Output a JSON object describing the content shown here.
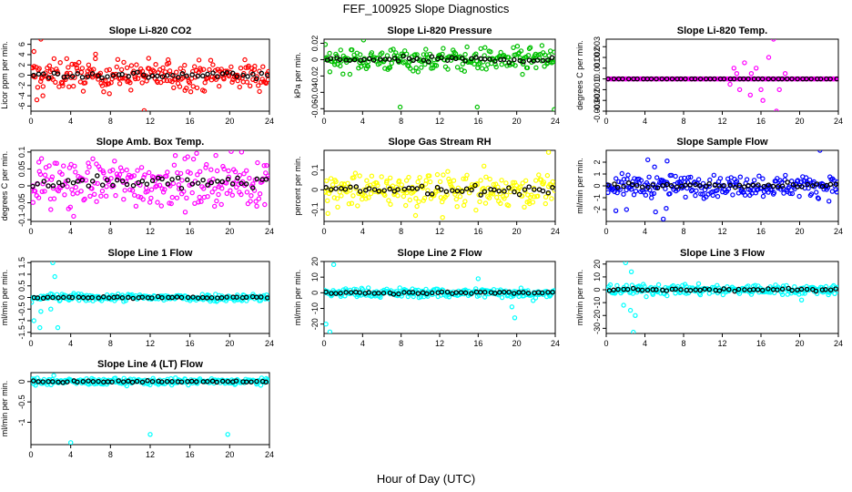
{
  "figure": {
    "title": "FEF_100925  Slope Diagnostics",
    "xlabel": "Hour of Day (UTC)"
  },
  "chart_data": [
    {
      "type": "scatter",
      "title": "Slope Li-820 CO2",
      "ylabel": "Licor ppm per min.",
      "xlim": [
        0,
        24
      ],
      "xticks": [
        0,
        4,
        8,
        12,
        16,
        20,
        24
      ],
      "ylim": [
        -7,
        7
      ],
      "yticks": [
        -6,
        -4,
        -2,
        0,
        2,
        4,
        6
      ],
      "grid": false,
      "colors": {
        "raw": "#ff0000",
        "mean": "#000000"
      },
      "noise": {
        "center": 0,
        "spread": 1.4
      },
      "outliers": [
        [
          0.3,
          4.6
        ],
        [
          0.6,
          -4.8
        ],
        [
          1.0,
          7.0
        ],
        [
          1.2,
          -4.0
        ],
        [
          3.6,
          3.2
        ],
        [
          6.5,
          4.1
        ],
        [
          7.9,
          -3.6
        ],
        [
          11.4,
          -6.9
        ],
        [
          13.8,
          3.0
        ]
      ]
    },
    {
      "type": "scatter",
      "title": "Slope Li-820 Pressure",
      "ylabel": "kPa per min.",
      "xlim": [
        0,
        24
      ],
      "xticks": [
        0,
        4,
        8,
        12,
        16,
        20,
        24
      ],
      "ylim": [
        -0.063,
        0.025
      ],
      "yticks": [
        0.02,
        0,
        -0.02,
        -0.04,
        -0.06
      ],
      "grid": false,
      "colors": {
        "raw": "#00c000",
        "mean": "#000000"
      },
      "noise": {
        "center": 0,
        "spread": 0.007
      },
      "outliers": [
        [
          4.1,
          0.024
        ],
        [
          7.9,
          -0.058
        ],
        [
          15.9,
          -0.058
        ],
        [
          23.9,
          -0.061
        ],
        [
          20.6,
          -0.018
        ]
      ]
    },
    {
      "type": "scatter",
      "title": "Slope Li-820 Temp.",
      "ylabel": "degrees C per min.",
      "xlim": [
        0,
        24
      ],
      "xticks": [
        0,
        4,
        8,
        12,
        16,
        20,
        24
      ],
      "ylim": [
        -0.003,
        0.0037
      ],
      "yticks": [
        0.003,
        0.002,
        0.001,
        0,
        -0.001,
        -0.002,
        -0.003
      ],
      "grid": false,
      "colors": {
        "raw": "#ff00ff",
        "mean": "#000000"
      },
      "noise": {
        "center": 0,
        "spread": 1e-05
      },
      "outliers": [
        [
          13.2,
          0.001
        ],
        [
          13.8,
          -0.001
        ],
        [
          14.3,
          0.0015
        ],
        [
          14.9,
          -0.0015
        ],
        [
          15.5,
          0.001
        ],
        [
          16.2,
          -0.002
        ],
        [
          16.8,
          0.002
        ],
        [
          17.3,
          0.0037
        ],
        [
          17.9,
          -0.001
        ],
        [
          18.5,
          0.0005
        ],
        [
          12.8,
          -0.0005
        ],
        [
          13.5,
          0.0005
        ],
        [
          16.0,
          -0.001
        ],
        [
          15.0,
          0.0005
        ],
        [
          17.6,
          -0.003
        ]
      ]
    },
    {
      "type": "scatter",
      "title": "Slope Amb. Box Temp.",
      "ylabel": "degrees C per min.",
      "xlim": [
        0,
        24
      ],
      "xticks": [
        0,
        4,
        8,
        12,
        16,
        20,
        24
      ],
      "ylim": [
        -0.105,
        0.105
      ],
      "yticks": [
        0.1,
        0.05,
        0,
        -0.05,
        -0.1
      ],
      "grid": false,
      "colors": {
        "raw": "#ff00ff",
        "mean": "#000000"
      },
      "noise": {
        "center": 0.01,
        "spread": 0.035
      },
      "outliers": [
        [
          4.3,
          -0.09
        ],
        [
          0.8,
          0.07
        ],
        [
          21.2,
          0.1
        ],
        [
          18.6,
          0.09
        ],
        [
          2.0,
          -0.07
        ]
      ]
    },
    {
      "type": "scatter",
      "title": "Slope Gas Stream RH",
      "ylabel": "percent per min.",
      "xlim": [
        0,
        24
      ],
      "xticks": [
        0,
        4,
        8,
        12,
        16,
        20,
        24
      ],
      "ylim": [
        -0.16,
        0.2
      ],
      "yticks": [
        0.1,
        0,
        -0.1
      ],
      "grid": false,
      "colors": {
        "raw": "#ffff00",
        "mean": "#000000"
      },
      "noise": {
        "center": 0,
        "spread": 0.04
      },
      "outliers": [
        [
          23.3,
          0.19
        ],
        [
          0.4,
          -0.12
        ],
        [
          9.5,
          -0.13
        ],
        [
          16.6,
          0.12
        ],
        [
          12.3,
          -0.14
        ]
      ]
    },
    {
      "type": "scatter",
      "title": "Slope Sample Flow",
      "ylabel": "ml/min per min.",
      "xlim": [
        0,
        24
      ],
      "xticks": [
        0,
        4,
        8,
        12,
        16,
        20,
        24
      ],
      "ylim": [
        -3,
        3
      ],
      "yticks": [
        2,
        1,
        0,
        -1,
        -2
      ],
      "grid": false,
      "colors": {
        "raw": "#0000ff",
        "mean": "#000000"
      },
      "noise": {
        "center": 0,
        "spread": 0.45
      },
      "outliers": [
        [
          5.0,
          1.6
        ],
        [
          5.1,
          -2.2
        ],
        [
          6.2,
          -1.9
        ],
        [
          4.3,
          2.2
        ],
        [
          6.3,
          2.1
        ],
        [
          2.1,
          -2.0
        ],
        [
          22.1,
          3.0
        ],
        [
          1.0,
          -2.1
        ],
        [
          5.9,
          -2.8
        ]
      ]
    },
    {
      "type": "scatter",
      "title": "Slope Line 1 Flow",
      "ylabel": "ml/min per min.",
      "xlim": [
        0,
        24
      ],
      "xticks": [
        0,
        4,
        8,
        12,
        16,
        20,
        24
      ],
      "ylim": [
        -1.55,
        1.55
      ],
      "yticks": [
        1.5,
        1,
        0.5,
        0,
        -0.5,
        -1,
        -1.5
      ],
      "grid": false,
      "colors": {
        "raw": "#00ffff",
        "mean": "#000000"
      },
      "noise": {
        "center": 0,
        "spread": 0.08
      },
      "outliers": [
        [
          2.2,
          1.5
        ],
        [
          0.3,
          -1.0
        ],
        [
          1.0,
          -0.6
        ],
        [
          2.7,
          -1.3
        ],
        [
          0.9,
          -1.3
        ],
        [
          2.4,
          0.9
        ],
        [
          2.0,
          -0.5
        ]
      ]
    },
    {
      "type": "scatter",
      "title": "Slope Line 2 Flow",
      "ylabel": "ml/min per min.",
      "xlim": [
        0,
        24
      ],
      "xticks": [
        0,
        4,
        8,
        12,
        16,
        20,
        24
      ],
      "ylim": [
        -26,
        20
      ],
      "yticks": [
        20,
        10,
        0,
        -10,
        -20
      ],
      "grid": false,
      "colors": {
        "raw": "#00ffff",
        "mean": "#000000"
      },
      "noise": {
        "center": 0,
        "spread": 1.5
      },
      "outliers": [
        [
          1.0,
          18
        ],
        [
          0.2,
          -20
        ],
        [
          0.6,
          -25
        ],
        [
          16.0,
          9
        ],
        [
          19.8,
          -16
        ],
        [
          21.7,
          -5
        ],
        [
          19.5,
          -9
        ]
      ]
    },
    {
      "type": "scatter",
      "title": "Slope Line 3 Flow",
      "ylabel": "ml/min per min.",
      "xlim": [
        0,
        24
      ],
      "xticks": [
        0,
        4,
        8,
        12,
        16,
        20,
        24
      ],
      "ylim": [
        -34,
        22
      ],
      "yticks": [
        20,
        10,
        0,
        -10,
        -20,
        -30
      ],
      "grid": false,
      "colors": {
        "raw": "#00ffff",
        "mean": "#000000"
      },
      "noise": {
        "center": 0,
        "spread": 2.0
      },
      "outliers": [
        [
          2.0,
          21
        ],
        [
          2.8,
          -33
        ],
        [
          1.8,
          -12
        ],
        [
          2.5,
          -16
        ],
        [
          2.6,
          14
        ],
        [
          3.0,
          -20
        ],
        [
          20.2,
          -8
        ]
      ]
    },
    {
      "type": "scatter",
      "title": "Slope Line 4 (LT) Flow",
      "ylabel": "ml/min per min.",
      "xlim": [
        0,
        24
      ],
      "xticks": [
        0,
        4,
        8,
        12,
        16,
        20,
        24
      ],
      "ylim": [
        -1.55,
        0.22
      ],
      "yticks": [
        0,
        -0.5,
        -1
      ],
      "grid": false,
      "colors": {
        "raw": "#00ffff",
        "mean": "#000000"
      },
      "noise": {
        "center": 0,
        "spread": 0.04
      },
      "outliers": [
        [
          4.0,
          -1.5
        ],
        [
          12.0,
          -1.3
        ],
        [
          19.8,
          -1.3
        ],
        [
          2.3,
          0.15
        ]
      ]
    }
  ]
}
